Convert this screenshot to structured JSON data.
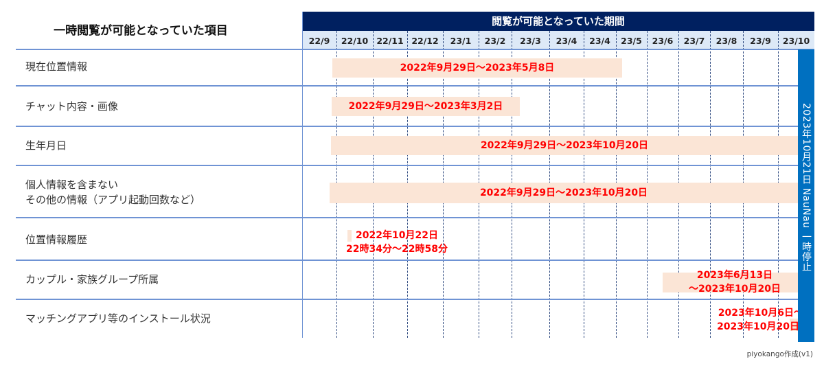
{
  "left_header": "一時閲覧が可能となっていた項目",
  "period_header": "閲覧が可能となっていた期間",
  "months": [
    "22/9",
    "22/10",
    "22/11",
    "22/12",
    "23/1",
    "23/2",
    "23/3",
    "23/4",
    "23/4",
    "23/5",
    "23/6",
    "23/7",
    "23/8",
    "23/9",
    "23/10"
  ],
  "items": [
    {
      "label": "現在位置情報",
      "period": "2022年9月29日～2023年5月8日"
    },
    {
      "label": "チャット内容・画像",
      "period": "2022年9月29日～2023年3月2日"
    },
    {
      "label": "生年月日",
      "period": "2022年9月29日～2023年10月20日"
    },
    {
      "label_line1": "個人情報を含まない",
      "label_line2": "その他の情報（アプリ起動回数など）",
      "period": "2022年9月29日～2023年10月20日"
    },
    {
      "label": "位置情報履歴",
      "period_line1": "2022年10月22日",
      "period_line2": "22時34分～22時58分"
    },
    {
      "label": "カップル・家族グループ所属",
      "period_line1": "2023年6月13日",
      "period_line2": "～2023年10月20日"
    },
    {
      "label": "マッチングアプリ等のインストール状況",
      "period_line1": "2023年10月6日～",
      "period_line2": "2023年10月20日"
    }
  ],
  "stop_marker": "2023年10月21日 NauNau 一時停止",
  "footer": "piyokango作成(v1)",
  "colors": {
    "header_bg": "#002060",
    "month_bg": "#dde9f7",
    "bar": "#fbe5d6",
    "period_text": "#ff0000",
    "stop_bar": "#0070c0",
    "grid": "#6f93d4"
  }
}
